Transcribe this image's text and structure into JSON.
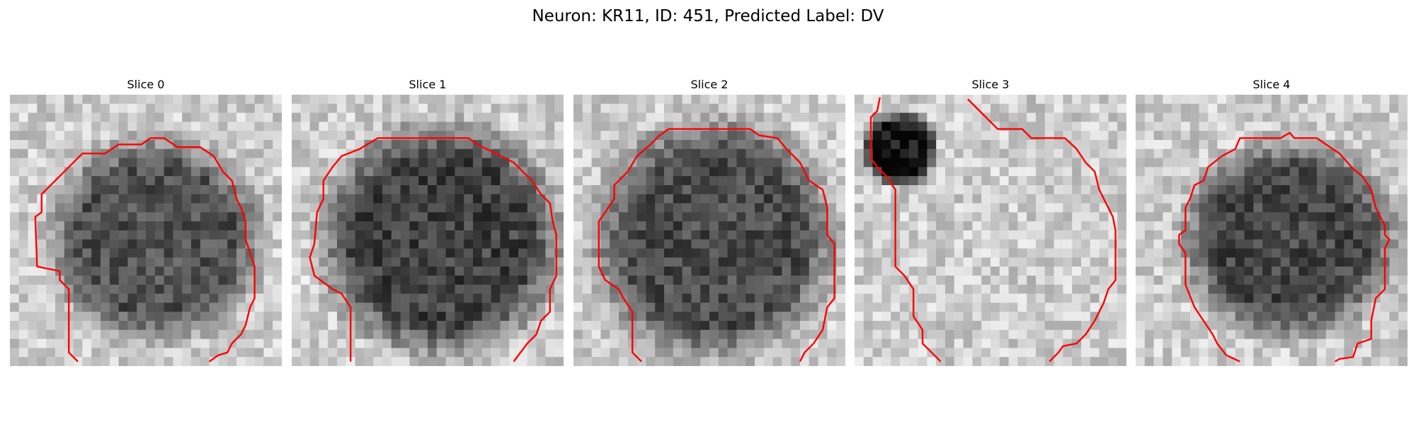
{
  "figure": {
    "title": "Neuron: KR11, ID: 451, Predicted Label: DV",
    "contour_color": "#ff0000"
  },
  "panels": [
    {
      "title": "Slice 0",
      "seed": 11
    },
    {
      "title": "Slice 1",
      "seed": 23
    },
    {
      "title": "Slice 2",
      "seed": 37
    },
    {
      "title": "Slice 3",
      "seed": 41
    },
    {
      "title": "Slice 4",
      "seed": 59
    }
  ]
}
